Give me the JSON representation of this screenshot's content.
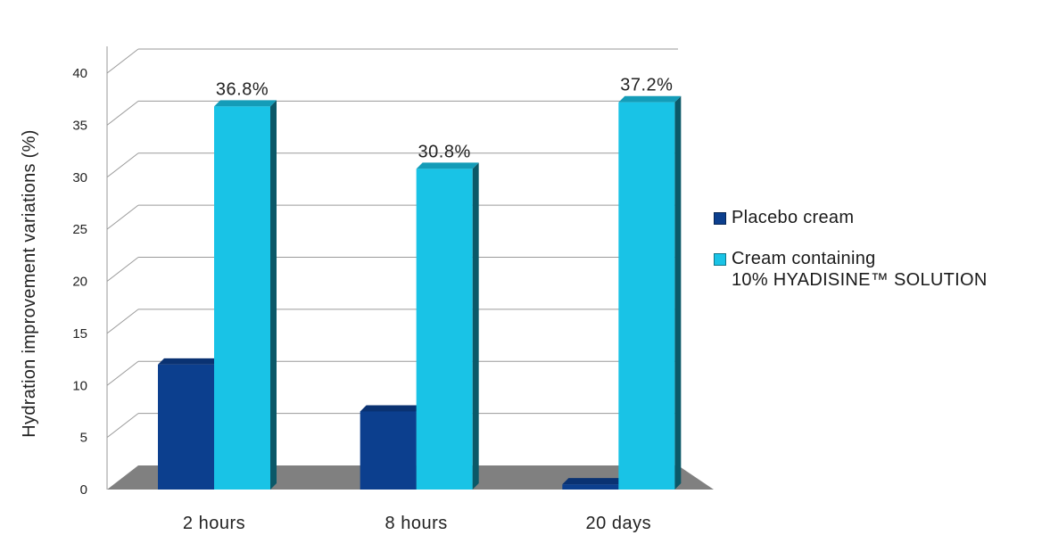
{
  "chart_data": {
    "type": "bar",
    "title": "",
    "xlabel": "",
    "ylabel": "Hydration improvement variations (%)",
    "ylim": [
      0,
      40
    ],
    "yticks": [
      0,
      5,
      10,
      15,
      20,
      25,
      30,
      35,
      40
    ],
    "grid": true,
    "legend_position": "right",
    "categories": [
      "2 hours",
      "8 hours",
      "20 days"
    ],
    "series": [
      {
        "name": "Placebo cream",
        "color": "#0c3f8e",
        "values": [
          12,
          7.5,
          0.5
        ]
      },
      {
        "name": "Cream containing 10% HYADISINE™ SOLUTION",
        "color": "#19c3e6",
        "values": [
          36.8,
          30.8,
          37.2
        ]
      }
    ],
    "data_labels": [
      "36.8%",
      "30.8%",
      "37.2%"
    ]
  },
  "legend": {
    "items": [
      {
        "color": "#0c3f8e",
        "lines": [
          "Placebo cream"
        ]
      },
      {
        "color": "#19c3e6",
        "lines": [
          "Cream containing",
          "10% HYADISINE™ SOLUTION"
        ]
      }
    ]
  }
}
